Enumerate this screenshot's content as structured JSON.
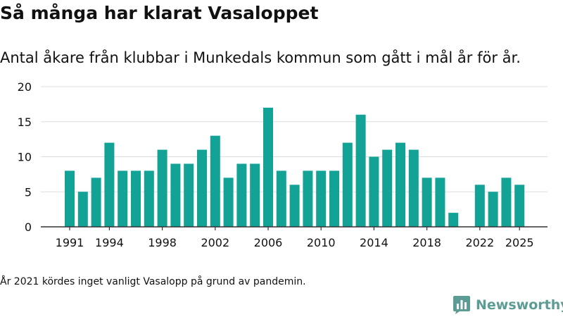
{
  "title": "Så många har klarat Vasaloppet",
  "subtitle": "Antal åkare från klubbar i Munkedals kommun som gått i mål år för år.",
  "footnote": "År 2021 kördes inget vanligt Vasalopp på grund av pandemin.",
  "brand": {
    "name": "Newsworthy",
    "icon": "bar-chart-logo-icon",
    "color": "#5d9c95"
  },
  "colors": {
    "bar": "#12a396",
    "grid": "#dddddd",
    "axis": "#333333",
    "text": "#111111"
  },
  "chart_data": {
    "type": "bar",
    "title": "Så många har klarat Vasaloppet",
    "xlabel": "",
    "ylabel": "",
    "ylim": [
      0,
      20
    ],
    "yticks": [
      0,
      5,
      10,
      15,
      20
    ],
    "grid": true,
    "categories": [
      1991,
      1992,
      1993,
      1994,
      1995,
      1996,
      1997,
      1998,
      1999,
      2000,
      2001,
      2002,
      2003,
      2004,
      2005,
      2006,
      2007,
      2008,
      2009,
      2010,
      2011,
      2012,
      2013,
      2014,
      2015,
      2016,
      2017,
      2018,
      2019,
      2020,
      2021,
      2022,
      2023,
      2024,
      2025
    ],
    "values": [
      8,
      5,
      7,
      12,
      8,
      8,
      8,
      11,
      9,
      9,
      11,
      13,
      7,
      9,
      9,
      17,
      8,
      6,
      8,
      8,
      8,
      12,
      16,
      10,
      11,
      12,
      11,
      7,
      7,
      2,
      null,
      6,
      5,
      7,
      6
    ],
    "xticks": [
      1991,
      1994,
      1998,
      2002,
      2006,
      2010,
      2014,
      2018,
      2022,
      2025
    ]
  }
}
